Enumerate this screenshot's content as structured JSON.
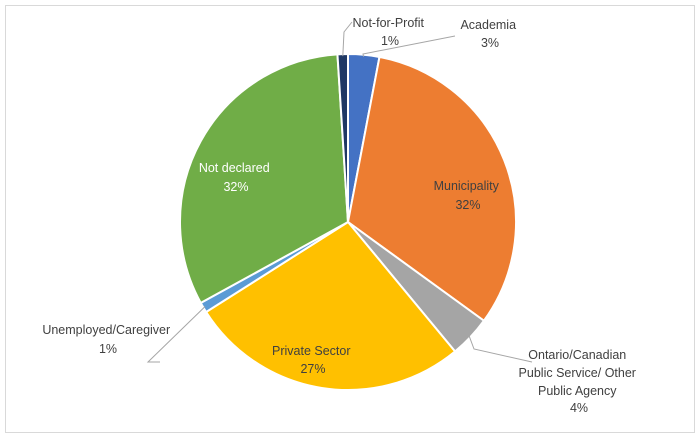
{
  "chart_data": {
    "type": "pie",
    "title": "",
    "slices": [
      {
        "label": "Academia",
        "percent_label": "3%",
        "value": 3,
        "color": "#4472c4"
      },
      {
        "label": "Municipality",
        "percent_label": "32%",
        "value": 32,
        "color": "#ed7d31"
      },
      {
        "label": "Ontario/Canadian Public Service/ Other Public Agency",
        "percent_label": "4%",
        "value": 4,
        "color": "#a5a5a5"
      },
      {
        "label": "Private Sector",
        "percent_label": "27%",
        "value": 27,
        "color": "#ffc000"
      },
      {
        "label": "Unemployed/Caregiver",
        "percent_label": "1%",
        "value": 1,
        "color": "#5b9bd5"
      },
      {
        "label": "Not declared",
        "percent_label": "32%",
        "value": 32,
        "color": "#70ad47"
      },
      {
        "label": "Not-for-Profit",
        "percent_label": "1%",
        "value": 1,
        "color": "#1f3864"
      }
    ]
  }
}
